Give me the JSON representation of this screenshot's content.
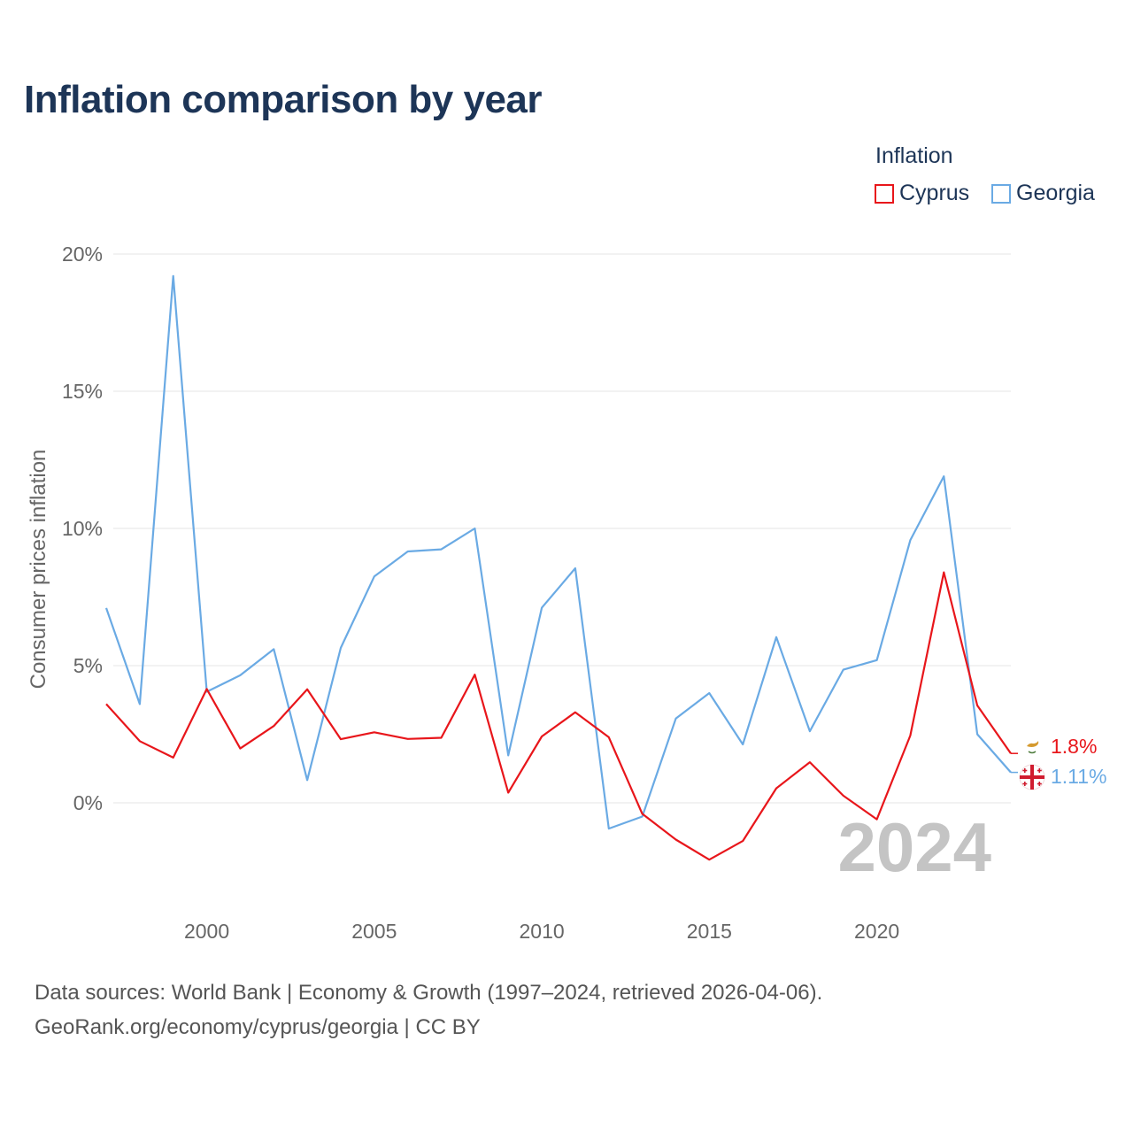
{
  "header": {
    "title": "Inflation comparison by year"
  },
  "legend": {
    "title": "Inflation",
    "items": [
      {
        "label": "Cyprus",
        "color": "#e8161b"
      },
      {
        "label": "Georgia",
        "color": "#6aaae4"
      }
    ]
  },
  "footer": {
    "source_line": "Data sources: World Bank | Economy & Growth (1997–2024, retrieved 2026-04-06).",
    "url_line": "GeoRank.org/economy/cyprus/georgia | CC BY"
  },
  "chart_data": {
    "type": "line",
    "title": "Inflation comparison by year",
    "xlabel": "",
    "ylabel": "Consumer prices inflation",
    "x": [
      1997,
      1998,
      1999,
      2000,
      2001,
      2002,
      2003,
      2004,
      2005,
      2006,
      2007,
      2008,
      2009,
      2010,
      2011,
      2012,
      2013,
      2014,
      2015,
      2016,
      2017,
      2018,
      2019,
      2020,
      2021,
      2022,
      2023,
      2024
    ],
    "xlim": [
      1997,
      2024
    ],
    "ylim": [
      -3.5,
      21
    ],
    "xticks": [
      2000,
      2005,
      2010,
      2015,
      2020
    ],
    "xtick_labels": [
      "2000",
      "2005",
      "2010",
      "2015",
      "2020"
    ],
    "yticks": [
      0,
      5,
      10,
      15,
      20
    ],
    "ytick_labels": [
      "0%",
      "5%",
      "10%",
      "15%",
      "20%"
    ],
    "grid": true,
    "legend_position": "top-right",
    "watermark_year": "2024",
    "series": [
      {
        "name": "Cyprus",
        "color": "#e8161b",
        "values": [
          3.6,
          2.25,
          1.65,
          4.15,
          1.98,
          2.8,
          4.14,
          2.32,
          2.57,
          2.33,
          2.37,
          4.67,
          0.37,
          2.42,
          3.3,
          2.39,
          -0.4,
          -1.34,
          -2.07,
          -1.39,
          0.53,
          1.48,
          0.26,
          -0.6,
          2.45,
          8.4,
          3.55,
          1.8
        ],
        "end_label": "1.8%"
      },
      {
        "name": "Georgia",
        "color": "#6aaae4",
        "values": [
          7.1,
          3.6,
          19.2,
          4.05,
          4.65,
          5.6,
          0.83,
          5.65,
          8.25,
          9.16,
          9.24,
          10.0,
          1.73,
          7.11,
          8.55,
          -0.94,
          -0.5,
          3.07,
          4.0,
          2.13,
          6.04,
          2.61,
          4.85,
          5.2,
          9.57,
          11.9,
          2.5,
          1.11
        ],
        "end_label": "1.11%"
      }
    ]
  }
}
